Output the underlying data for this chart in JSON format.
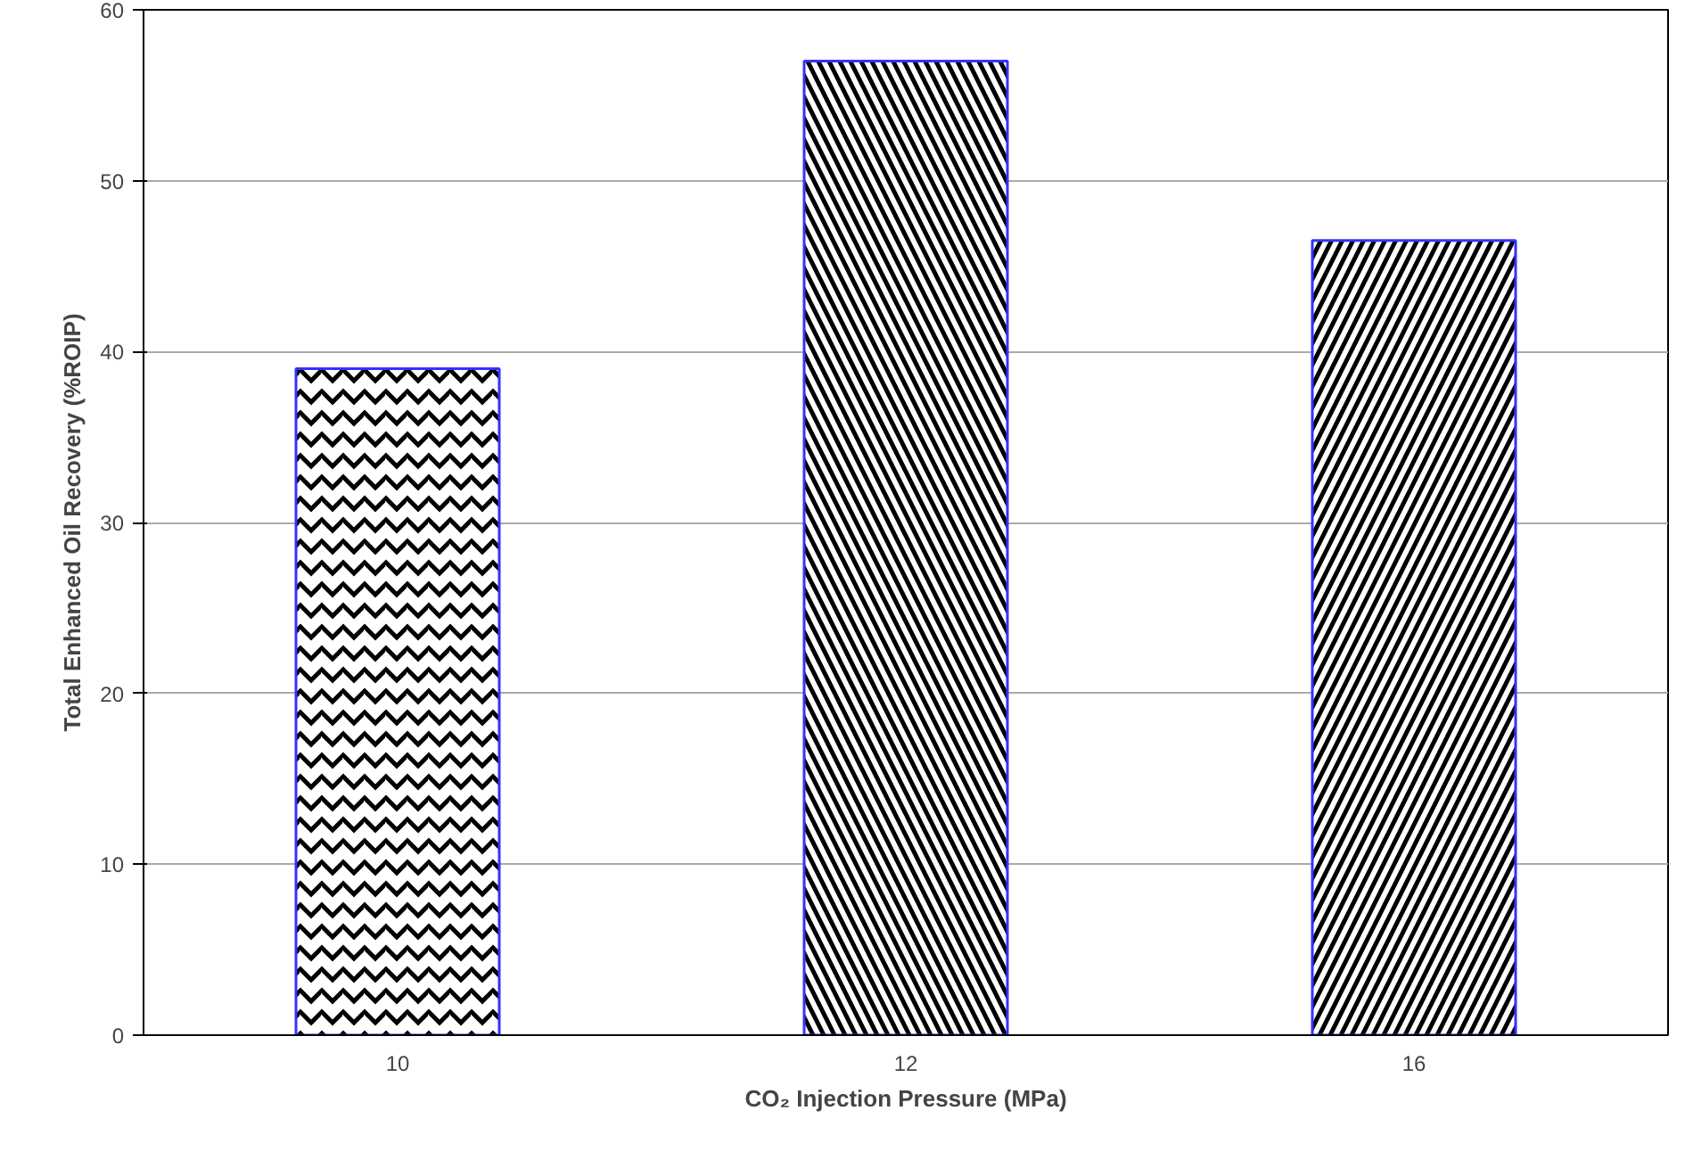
{
  "chart_data": {
    "type": "bar",
    "xlabel": "CO₂ Injection Pressure (MPa)",
    "ylabel": "Total Enhanced Oil Recovery (%ROIP)",
    "categories": [
      "10",
      "12",
      "16"
    ],
    "values": [
      39,
      57,
      46.5
    ],
    "color": "#ffffff",
    "ylim": [
      0,
      60
    ],
    "yticks": [
      0,
      10,
      20,
      30,
      40,
      50,
      60
    ],
    "grid": "y"
  }
}
